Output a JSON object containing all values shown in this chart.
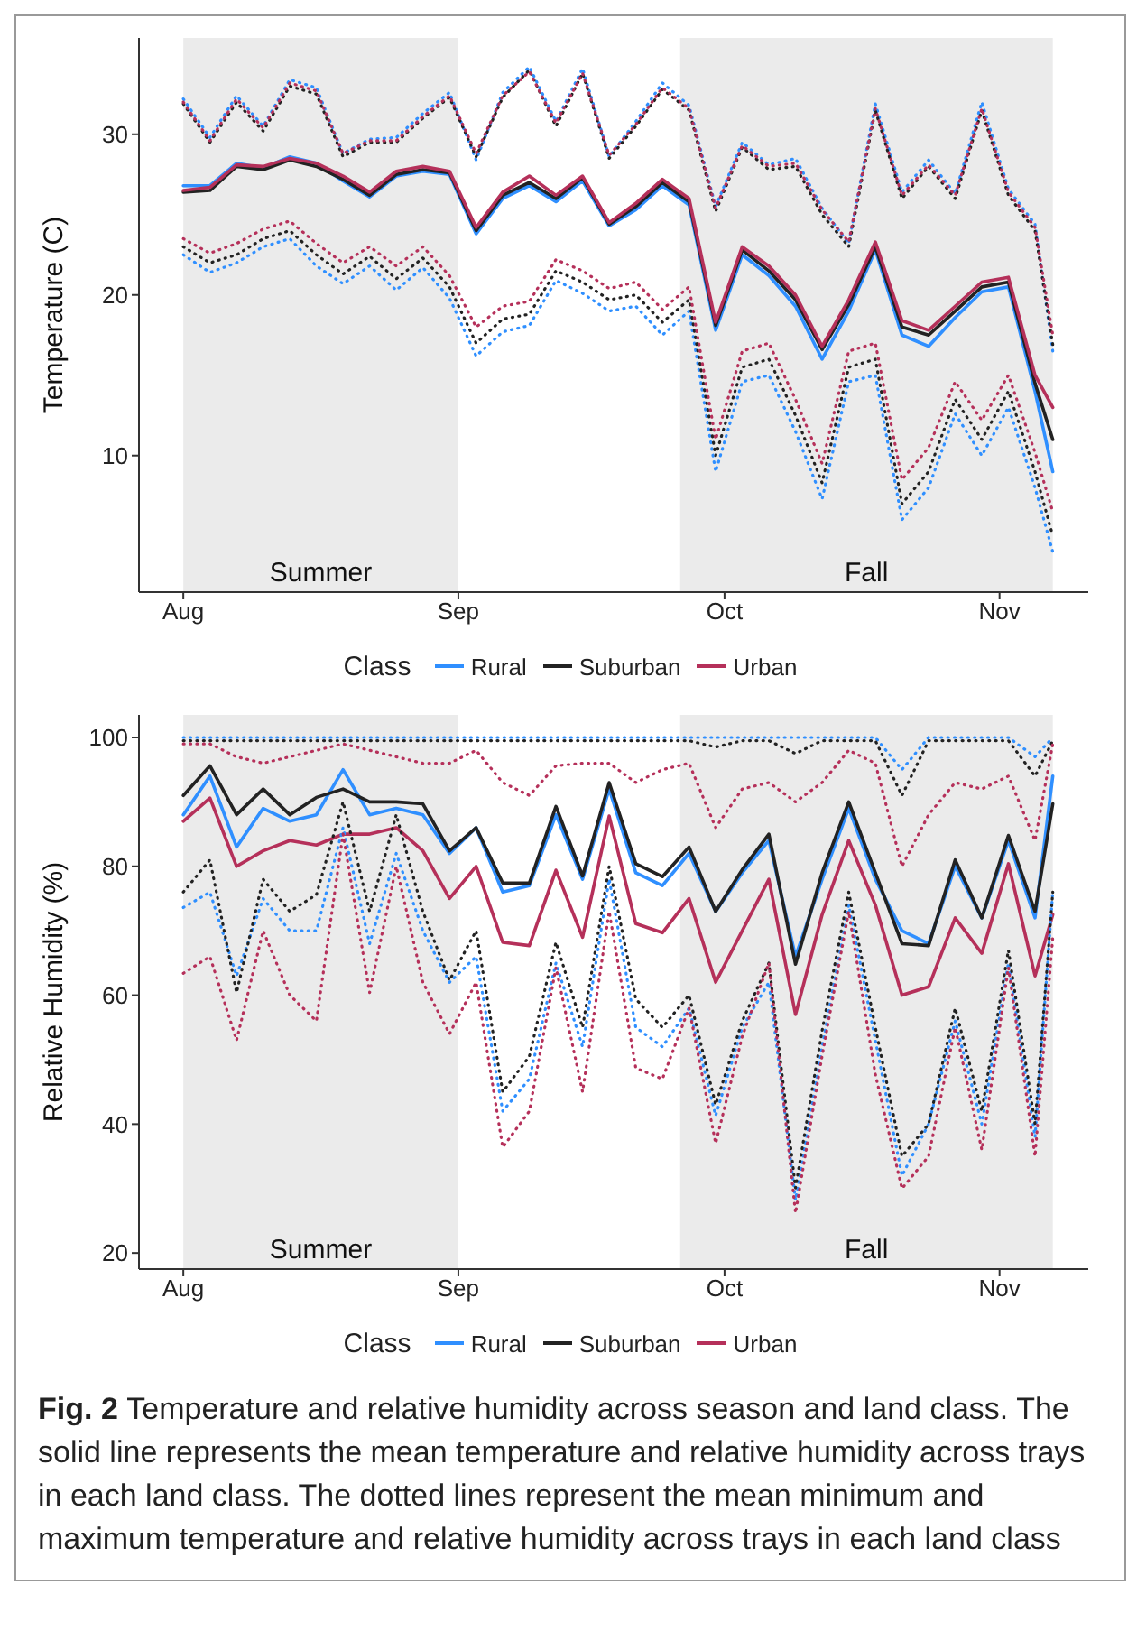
{
  "chart_data": [
    {
      "type": "line",
      "ylabel": "Temperature (C)",
      "legend_title": "Class",
      "legend": "bottom",
      "x": [
        "--08-01",
        "--08-04",
        "--08-07",
        "--08-10",
        "--08-13",
        "--08-16",
        "--08-19",
        "--08-22",
        "--08-25",
        "--08-28",
        "--08-31",
        "--09-03",
        "--09-06",
        "--09-09",
        "--09-12",
        "--09-15",
        "--09-18",
        "--09-21",
        "--09-24",
        "--09-27",
        "--09-30",
        "--10-03",
        "--10-06",
        "--10-09",
        "--10-12",
        "--10-15",
        "--10-18",
        "--10-21",
        "--10-24",
        "--10-27",
        "--10-30",
        "--11-02",
        "--11-05",
        "--11-07"
      ],
      "xlim": [
        "--07-27",
        "--11-11"
      ],
      "xticks": [
        {
          "value": "--08-01",
          "label": "Aug"
        },
        {
          "value": "--09-01",
          "label": "Sep"
        },
        {
          "value": "--10-01",
          "label": "Oct"
        },
        {
          "value": "--11-01",
          "label": "Nov"
        }
      ],
      "ylim": [
        1.5,
        36
      ],
      "yticks": [
        10,
        20,
        30
      ],
      "bands": [
        {
          "axis": "x",
          "from": "--08-01",
          "to": "--09-01",
          "label": "Summer",
          "color": "#ebebeb"
        },
        {
          "axis": "x",
          "from": "--09-26",
          "to": "--11-07",
          "label": "Fall",
          "color": "#ebebeb"
        }
      ],
      "series": [
        {
          "name": "Rural",
          "color": "#2f8fff",
          "line_style": "solid",
          "values": [
            26.8,
            26.8,
            28.2,
            27.9,
            28.6,
            28.2,
            27.1,
            26.1,
            27.4,
            27.7,
            27.5,
            23.8,
            26.0,
            26.8,
            25.8,
            27.1,
            24.3,
            25.3,
            26.8,
            25.6,
            17.8,
            22.5,
            21.2,
            19.3,
            16.0,
            19.0,
            22.8,
            17.5,
            16.8,
            18.6,
            20.2,
            20.5,
            14.0,
            9.0
          ]
        },
        {
          "name": "Suburban",
          "color": "#222222",
          "line_style": "solid",
          "values": [
            26.4,
            26.5,
            28,
            27.8,
            28.4,
            28,
            27.2,
            26.2,
            27.5,
            27.8,
            27.6,
            24,
            26.2,
            27,
            26,
            27.3,
            24.4,
            25.5,
            27,
            25.8,
            18.1,
            22.8,
            21.5,
            19.7,
            16.6,
            19.4,
            23,
            18,
            17.5,
            19,
            20.5,
            20.8,
            14.5,
            11
          ]
        },
        {
          "name": "Urban",
          "color": "#b5305a",
          "line_style": "solid",
          "values": [
            26.5,
            26.7,
            28.1,
            28.0,
            28.5,
            28.2,
            27.4,
            26.4,
            27.7,
            28.0,
            27.7,
            24.2,
            26.4,
            27.4,
            26.2,
            27.4,
            24.5,
            25.7,
            27.2,
            26.0,
            18.3,
            23.0,
            21.8,
            20.0,
            16.8,
            19.7,
            23.3,
            18.4,
            17.8,
            19.3,
            20.8,
            21.1,
            15.0,
            13.0
          ]
        },
        {
          "color": "#2f8fff",
          "line_style": "dotted",
          "values": [
            32.2,
            29.8,
            32.4,
            30.5,
            33.4,
            32.9,
            28.8,
            29.7,
            29.8,
            31.3,
            32.6,
            28.4,
            32.6,
            34.2,
            30.8,
            34.1,
            28.6,
            30.8,
            33.2,
            31.8,
            25.5,
            29.5,
            28.1,
            28.5,
            25.4,
            23.2,
            31.9,
            26.4,
            28.4,
            26.3,
            32,
            26.6,
            24.4,
            16.5
          ]
        },
        {
          "color": "#222222",
          "line_style": "dotted",
          "values": [
            31.9,
            29.5,
            32,
            30.2,
            33,
            32.5,
            28.6,
            29.5,
            29.5,
            31,
            32.3,
            28.6,
            32.3,
            34,
            30.5,
            33.8,
            28.5,
            30.5,
            32.8,
            31.5,
            25.2,
            29.2,
            27.8,
            28,
            25,
            23,
            31.5,
            26,
            28,
            26,
            31.5,
            26.2,
            24,
            16.9
          ]
        },
        {
          "color": "#b5305a",
          "line_style": "dotted",
          "values": [
            32,
            29.6,
            32.2,
            30.4,
            33.2,
            32.7,
            28.8,
            29.6,
            29.6,
            31.1,
            32.4,
            28.8,
            32.4,
            33.9,
            30.7,
            33.8,
            28.7,
            30.6,
            32.9,
            31.6,
            25.4,
            29.3,
            28,
            28.2,
            25.3,
            23.3,
            31.6,
            26.2,
            28.1,
            26.2,
            31.6,
            26.4,
            24.2,
            17.5
          ]
        },
        {
          "color": "#2f8fff",
          "line_style": "dotted",
          "values": [
            22.5,
            21.4,
            22,
            23,
            23.5,
            21.8,
            20.7,
            21.8,
            20.3,
            21.7,
            19.8,
            16.2,
            17.7,
            18.1,
            20.9,
            20.1,
            19,
            19.3,
            17.5,
            19,
            9,
            14.6,
            15,
            11.5,
            7.3,
            14.6,
            15,
            6,
            8,
            12.6,
            10,
            13,
            8,
            4
          ]
        },
        {
          "color": "#222222",
          "line_style": "dotted",
          "values": [
            23,
            22,
            22.5,
            23.5,
            24,
            22.5,
            21.3,
            22.4,
            21,
            22.3,
            20.5,
            17,
            18.5,
            18.8,
            21.5,
            20.8,
            19.7,
            20,
            18.3,
            19.7,
            10,
            15.5,
            16,
            12.5,
            8.3,
            15.5,
            16,
            7,
            9,
            13.5,
            11,
            14,
            9,
            5
          ]
        },
        {
          "color": "#b5305a",
          "line_style": "dotted",
          "values": [
            23.5,
            22.6,
            23.2,
            24.1,
            24.6,
            23.2,
            22,
            23,
            21.8,
            23,
            21.2,
            18,
            19.3,
            19.6,
            22.2,
            21.5,
            20.4,
            20.8,
            19.1,
            20.5,
            11,
            16.5,
            17,
            13.5,
            9.5,
            16.5,
            17,
            8.5,
            10.5,
            14.6,
            12.2,
            15,
            10.2,
            6.5
          ]
        }
      ]
    },
    {
      "type": "line",
      "ylabel": "Relative Humidity (%)",
      "legend_title": "Class",
      "legend": "bottom",
      "x": [
        "--08-01",
        "--08-04",
        "--08-07",
        "--08-10",
        "--08-13",
        "--08-16",
        "--08-19",
        "--08-22",
        "--08-25",
        "--08-28",
        "--08-31",
        "--09-03",
        "--09-06",
        "--09-09",
        "--09-12",
        "--09-15",
        "--09-18",
        "--09-21",
        "--09-24",
        "--09-27",
        "--09-30",
        "--10-03",
        "--10-06",
        "--10-09",
        "--10-12",
        "--10-15",
        "--10-18",
        "--10-21",
        "--10-24",
        "--10-27",
        "--10-30",
        "--11-02",
        "--11-05",
        "--11-07"
      ],
      "xlim": [
        "--07-27",
        "--11-11"
      ],
      "xticks": [
        {
          "value": "--08-01",
          "label": "Aug"
        },
        {
          "value": "--09-01",
          "label": "Sep"
        },
        {
          "value": "--10-01",
          "label": "Oct"
        },
        {
          "value": "--11-01",
          "label": "Nov"
        }
      ],
      "ylim": [
        17.5,
        103.5
      ],
      "yticks": [
        20,
        40,
        60,
        80,
        100
      ],
      "bands": [
        {
          "axis": "x",
          "from": "--08-01",
          "to": "--09-01",
          "label": "Summer",
          "color": "#ebebeb"
        },
        {
          "axis": "x",
          "from": "--09-26",
          "to": "--11-07",
          "label": "Fall",
          "color": "#ebebeb"
        }
      ],
      "annotations": [
        "Fig. 2",
        "Temperature and relative humidity across season and land class. The solid line represents the mean temperature and relative humidity across trays in each land class. The dotted lines represent the mean minimum and maximum temperature and relative humidity across trays in each land class"
      ],
      "series": [
        {
          "name": "Rural",
          "color": "#2f8fff",
          "line_style": "solid",
          "values": [
            88,
            94,
            83,
            89,
            87,
            88,
            95,
            88,
            89,
            88,
            82,
            86,
            76,
            77,
            88,
            78,
            92,
            79,
            77,
            82,
            73,
            79,
            84,
            66,
            78,
            89,
            78,
            70,
            68,
            80,
            72,
            84,
            72,
            94
          ]
        },
        {
          "name": "Suburban",
          "color": "#222222",
          "line_style": "solid",
          "values": [
            91,
            95.6,
            88,
            92,
            88,
            90.7,
            92,
            90,
            90,
            89.7,
            82.4,
            86,
            77.4,
            77.4,
            89.3,
            78.5,
            93,
            80.4,
            78.4,
            83,
            73,
            79.5,
            85,
            64.8,
            79,
            90,
            79,
            68,
            67.7,
            81,
            72,
            84.8,
            73,
            89.7
          ]
        },
        {
          "name": "Urban",
          "color": "#b5305a",
          "line_style": "solid",
          "values": [
            87,
            90.6,
            80,
            82.4,
            84,
            83.3,
            85,
            85,
            86,
            82.4,
            75,
            80,
            68.2,
            67.7,
            79.4,
            69,
            87.8,
            71.1,
            69.7,
            75,
            62,
            70,
            78,
            57,
            72.5,
            84,
            74,
            60,
            61.3,
            72,
            66.5,
            80.4,
            63,
            72.5
          ]
        },
        {
          "color": "#2f8fff",
          "line_style": "dotted",
          "values": [
            100,
            100,
            100,
            100,
            100,
            100,
            100,
            100,
            100,
            100,
            100,
            100,
            100,
            100,
            100,
            100,
            100,
            100,
            100,
            100,
            100,
            100,
            100,
            100,
            100,
            100,
            100,
            95,
            100,
            100,
            100,
            100,
            97,
            100
          ]
        },
        {
          "color": "#222222",
          "line_style": "dotted",
          "values": [
            99.5,
            99.5,
            99.5,
            99.5,
            99.5,
            99.5,
            99.5,
            99.5,
            99.5,
            99.5,
            99.5,
            99.5,
            99.5,
            99.5,
            99.5,
            99.5,
            99.5,
            99.5,
            99.5,
            99.5,
            98.5,
            99.5,
            99.5,
            97.5,
            99.5,
            99.5,
            99.5,
            91,
            99.5,
            99.5,
            99.5,
            99.5,
            94,
            99.5
          ]
        },
        {
          "color": "#b5305a",
          "line_style": "dotted",
          "values": [
            99,
            99,
            97,
            96,
            97,
            98,
            99,
            98,
            97,
            96,
            96,
            98,
            93,
            91,
            95.6,
            96,
            96,
            93,
            95,
            96,
            86,
            92,
            93,
            90,
            93,
            98,
            96,
            80,
            88,
            93,
            92,
            94,
            84,
            99
          ]
        },
        {
          "color": "#2f8fff",
          "line_style": "dotted",
          "values": [
            73.6,
            76,
            63,
            75,
            70,
            70,
            86,
            68,
            82,
            70,
            62,
            66,
            42,
            47,
            65,
            52,
            78,
            55,
            52,
            58,
            41.3,
            55,
            62,
            28.2,
            52,
            74,
            53,
            32,
            40,
            56,
            40,
            65,
            38,
            76
          ]
        },
        {
          "color": "#222222",
          "line_style": "dotted",
          "values": [
            76,
            81,
            60.4,
            78,
            73,
            75.6,
            90,
            73,
            88,
            73,
            62.3,
            70,
            45,
            50.5,
            68.2,
            55,
            80,
            59.4,
            55,
            60,
            43,
            56,
            65,
            30.1,
            54.5,
            76,
            55,
            35,
            40,
            58,
            42,
            67,
            40,
            76
          ]
        },
        {
          "color": "#b5305a",
          "line_style": "dotted",
          "values": [
            63.4,
            66,
            53,
            70,
            60,
            56,
            85,
            60.4,
            80,
            62,
            54,
            62,
            36.4,
            42,
            64.3,
            45,
            73,
            48.7,
            47,
            58,
            37,
            53.6,
            65,
            26.2,
            50.6,
            73,
            47.7,
            30,
            35,
            55,
            36,
            64.3,
            35,
            69
          ]
        }
      ]
    }
  ]
}
